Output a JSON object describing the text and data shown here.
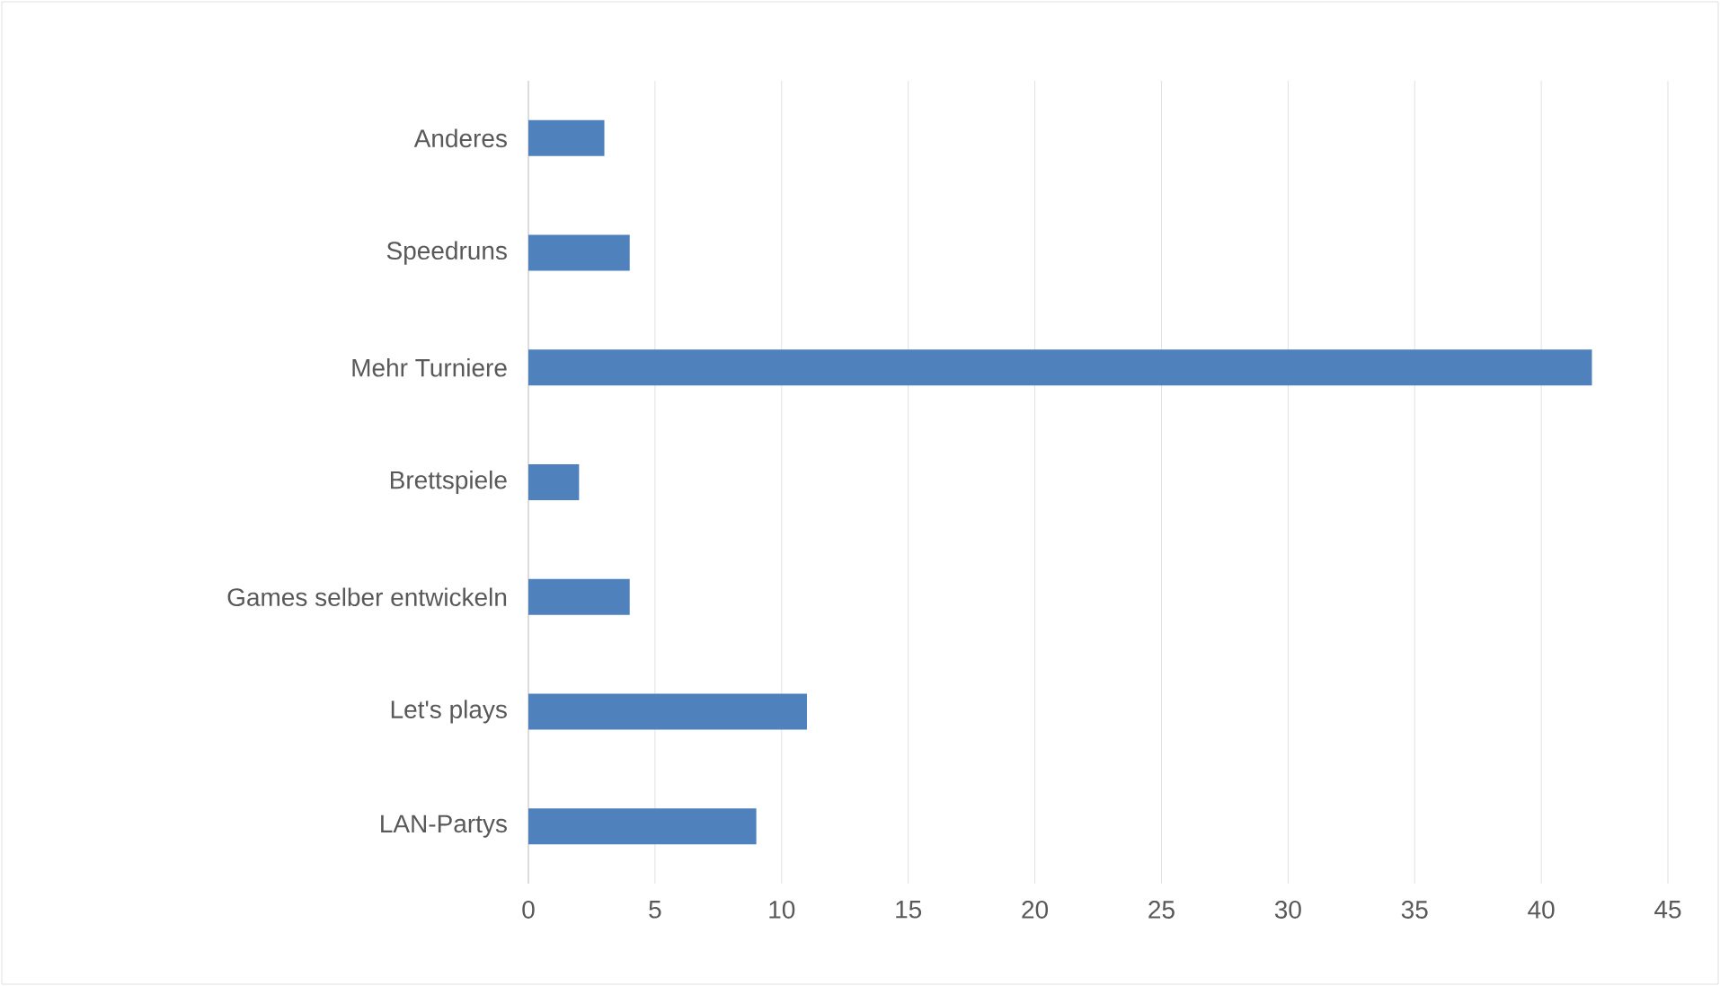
{
  "chart_data": {
    "type": "bar",
    "orientation": "horizontal",
    "categories": [
      "Anderes",
      "Speedruns",
      "Mehr Turniere",
      "Brettspiele",
      "Games selber entwickeln",
      "Let's plays",
      "LAN-Partys"
    ],
    "values": [
      3,
      4,
      42,
      2,
      4,
      11,
      9
    ],
    "color": "#4f81bd",
    "xlim": [
      0,
      45
    ],
    "xticks": [
      0,
      5,
      10,
      15,
      20,
      25,
      30,
      35,
      40,
      45
    ],
    "grid": "x"
  }
}
